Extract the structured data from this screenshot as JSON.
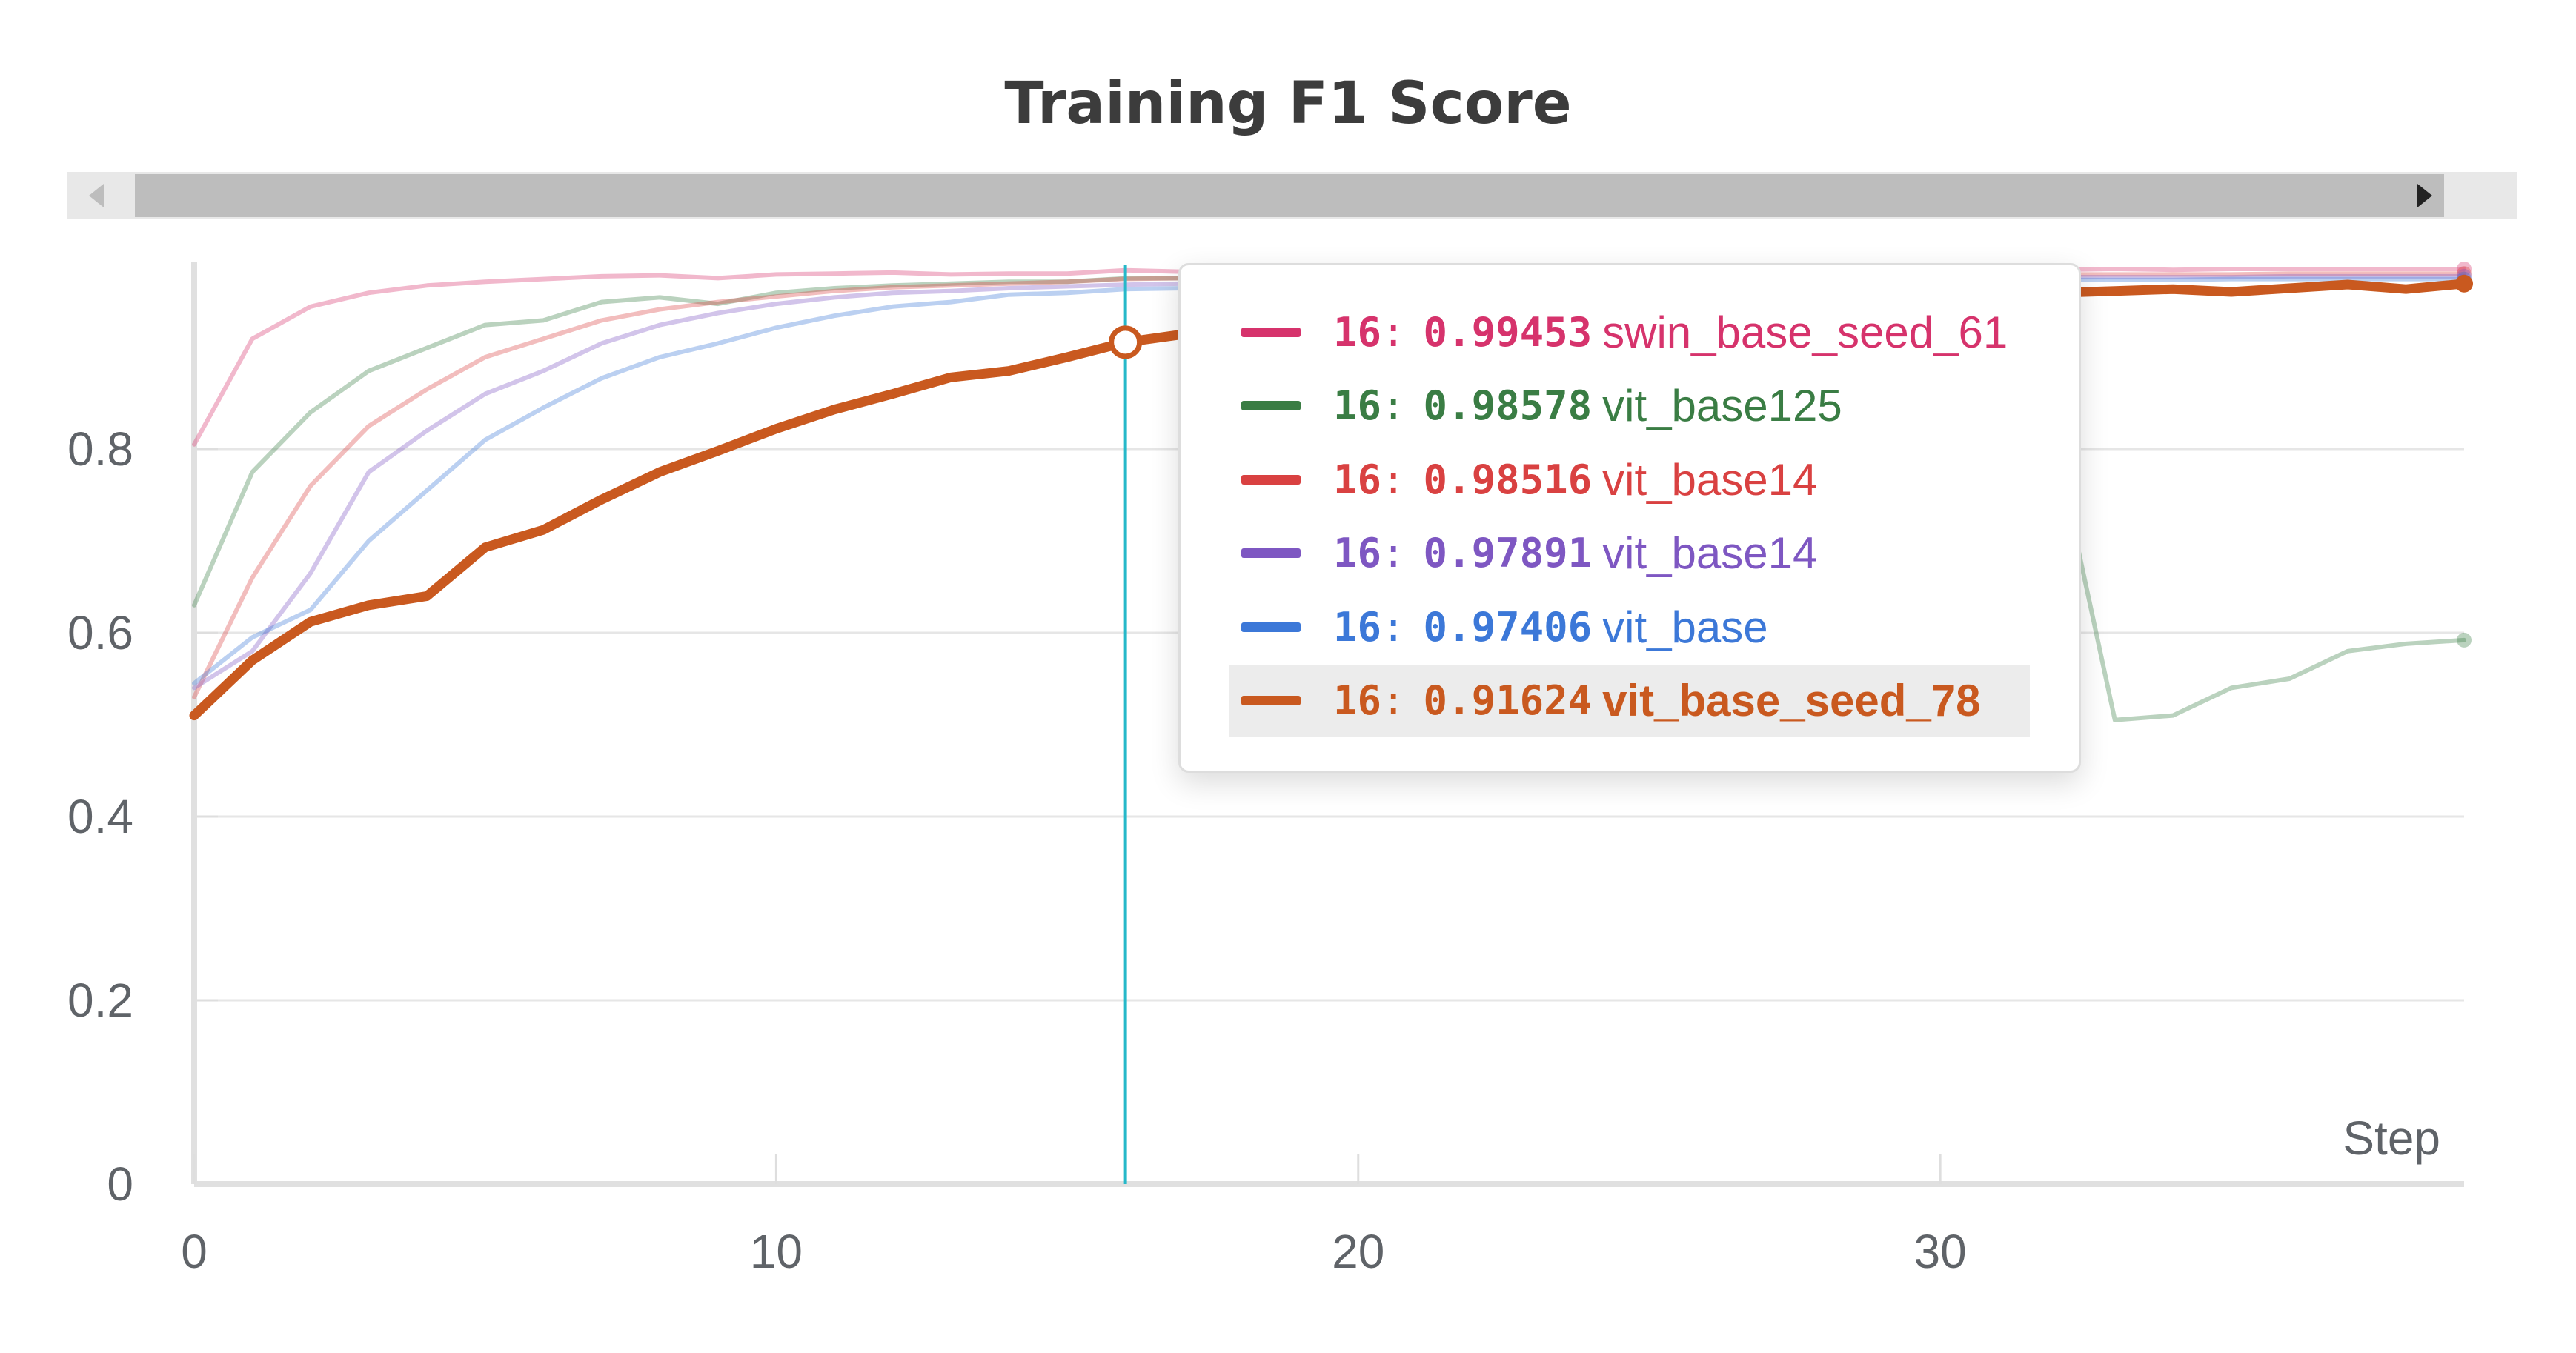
{
  "chart_data": {
    "type": "line",
    "title": "Training F1 Score",
    "xlabel": "Step",
    "ylabel": "",
    "xlim": [
      0,
      39
    ],
    "ylim": [
      0,
      1
    ],
    "x_ticks": [
      0,
      10,
      20,
      30
    ],
    "y_ticks": [
      0,
      0.2,
      0.4,
      0.6,
      0.8
    ],
    "y_tick_labels": [
      "0",
      "0.2",
      "0.4",
      "0.6",
      "0.8"
    ],
    "grid": true,
    "hover_step": 16,
    "series": [
      {
        "name": "swin_base_seed_61",
        "color": "#d6336c",
        "highlighted": false,
        "x": [
          0,
          1,
          2,
          3,
          4,
          5,
          6,
          7,
          8,
          9,
          10,
          11,
          12,
          13,
          14,
          15,
          16,
          17,
          18,
          19,
          20,
          21,
          22,
          23,
          24,
          25,
          26,
          27,
          28,
          29,
          30,
          31,
          32,
          33,
          34,
          35,
          36,
          37,
          38,
          39
        ],
        "y": [
          0.805,
          0.92,
          0.955,
          0.97,
          0.978,
          0.982,
          0.985,
          0.988,
          0.989,
          0.986,
          0.99,
          0.991,
          0.992,
          0.99,
          0.991,
          0.991,
          0.99453,
          0.993,
          0.992,
          0.993,
          0.993,
          0.994,
          0.993,
          0.994,
          0.994,
          0.994,
          0.995,
          0.994,
          0.995,
          0.995,
          0.995,
          0.995,
          0.995,
          0.996,
          0.995,
          0.996,
          0.996,
          0.996,
          0.996,
          0.996
        ]
      },
      {
        "name": "vit_base125",
        "color": "#3a7d44",
        "highlighted": false,
        "x": [
          0,
          1,
          2,
          3,
          4,
          5,
          6,
          7,
          8,
          9,
          10,
          11,
          12,
          13,
          14,
          15,
          16,
          17,
          18,
          19,
          20,
          21,
          22,
          23,
          24,
          25,
          26,
          27,
          28,
          29,
          30,
          31,
          32,
          33,
          34,
          35,
          36,
          37,
          38,
          39
        ],
        "y": [
          0.63,
          0.775,
          0.84,
          0.885,
          0.91,
          0.935,
          0.94,
          0.96,
          0.965,
          0.958,
          0.97,
          0.975,
          0.978,
          0.98,
          0.982,
          0.982,
          0.98578,
          0.986,
          0.987,
          0.987,
          0.988,
          0.988,
          0.989,
          0.989,
          0.989,
          0.99,
          0.99,
          0.99,
          0.99,
          0.99,
          0.99,
          0.99,
          0.8,
          0.505,
          0.51,
          0.54,
          0.55,
          0.58,
          0.588,
          0.592
        ]
      },
      {
        "name": "vit_base14",
        "color": "#d94141",
        "highlighted": false,
        "x": [
          0,
          1,
          2,
          3,
          4,
          5,
          6,
          7,
          8,
          9,
          10,
          11,
          12,
          13,
          14,
          15,
          16,
          17,
          18,
          19,
          20,
          21,
          22,
          23,
          24,
          25,
          26,
          27,
          28,
          29,
          30,
          31,
          32,
          33,
          34,
          35,
          36,
          37,
          38,
          39
        ],
        "y": [
          0.53,
          0.66,
          0.76,
          0.825,
          0.865,
          0.9,
          0.92,
          0.94,
          0.952,
          0.96,
          0.966,
          0.972,
          0.976,
          0.978,
          0.98,
          0.982,
          0.98516,
          0.986,
          0.987,
          0.987,
          0.988,
          0.988,
          0.989,
          0.989,
          0.99,
          0.99,
          0.99,
          0.99,
          0.99,
          0.99,
          0.99,
          0.99,
          0.99,
          0.99,
          0.99,
          0.99,
          0.991,
          0.991,
          0.991,
          0.991
        ]
      },
      {
        "name": "vit_base14",
        "color": "#7e57c2",
        "highlighted": false,
        "x": [
          0,
          1,
          2,
          3,
          4,
          5,
          6,
          7,
          8,
          9,
          10,
          11,
          12,
          13,
          14,
          15,
          16,
          17,
          18,
          19,
          20,
          21,
          22,
          23,
          24,
          25,
          26,
          27,
          28,
          29,
          30,
          31,
          32,
          33,
          34,
          35,
          36,
          37,
          38,
          39
        ],
        "y": [
          0.54,
          0.58,
          0.665,
          0.775,
          0.82,
          0.86,
          0.885,
          0.915,
          0.935,
          0.948,
          0.958,
          0.965,
          0.97,
          0.972,
          0.975,
          0.977,
          0.97891,
          0.98,
          0.981,
          0.982,
          0.983,
          0.983,
          0.984,
          0.984,
          0.985,
          0.985,
          0.985,
          0.986,
          0.986,
          0.986,
          0.986,
          0.987,
          0.987,
          0.987,
          0.987,
          0.987,
          0.988,
          0.988,
          0.988,
          0.988
        ]
      },
      {
        "name": "vit_base",
        "color": "#3c78d8",
        "highlighted": false,
        "x": [
          0,
          1,
          2,
          3,
          4,
          5,
          6,
          7,
          8,
          9,
          10,
          11,
          12,
          13,
          14,
          15,
          16,
          17,
          18,
          19,
          20,
          21,
          22,
          23,
          24,
          25,
          26,
          27,
          28,
          29,
          30,
          31,
          32,
          33,
          34,
          35,
          36,
          37,
          38,
          39
        ],
        "y": [
          0.545,
          0.595,
          0.625,
          0.7,
          0.755,
          0.81,
          0.845,
          0.877,
          0.9,
          0.915,
          0.932,
          0.945,
          0.955,
          0.96,
          0.968,
          0.97,
          0.97406,
          0.975,
          0.976,
          0.977,
          0.978,
          0.979,
          0.98,
          0.98,
          0.981,
          0.981,
          0.982,
          0.982,
          0.982,
          0.983,
          0.983,
          0.983,
          0.984,
          0.984,
          0.984,
          0.985,
          0.985,
          0.985,
          0.985,
          0.985
        ]
      },
      {
        "name": "vit_base_seed_78",
        "color": "#c9591f",
        "highlighted": true,
        "x": [
          0,
          1,
          2,
          3,
          4,
          5,
          6,
          7,
          8,
          9,
          10,
          11,
          12,
          13,
          14,
          15,
          16,
          17,
          18,
          19,
          20,
          21,
          22,
          23,
          24,
          25,
          26,
          27,
          28,
          29,
          30,
          31,
          32,
          33,
          34,
          35,
          36,
          37,
          38,
          39
        ],
        "y": [
          0.51,
          0.57,
          0.612,
          0.63,
          0.64,
          0.693,
          0.712,
          0.745,
          0.775,
          0.798,
          0.822,
          0.843,
          0.86,
          0.878,
          0.885,
          0.9,
          0.91624,
          0.925,
          0.93,
          0.935,
          0.94,
          0.945,
          0.948,
          0.952,
          0.955,
          0.958,
          0.96,
          0.962,
          0.963,
          0.965,
          0.967,
          0.968,
          0.97,
          0.972,
          0.974,
          0.971,
          0.975,
          0.979,
          0.974,
          0.98
        ]
      }
    ]
  },
  "tooltip": {
    "rows": [
      {
        "step": "16",
        "value": "0.99453",
        "name": "swin_base_seed_61",
        "color": "#d6336c"
      },
      {
        "step": "16",
        "value": "0.98578",
        "name": "vit_base125",
        "color": "#3a7d44"
      },
      {
        "step": "16",
        "value": "0.98516",
        "name": "vit_base14",
        "color": "#d94141"
      },
      {
        "step": "16",
        "value": "0.97891",
        "name": "vit_base14",
        "color": "#7e57c2"
      },
      {
        "step": "16",
        "value": "0.97406",
        "name": "vit_base",
        "color": "#3c78d8"
      },
      {
        "step": "16",
        "value": "0.91624",
        "name": "vit_base_seed_78",
        "color": "#c9591f"
      }
    ]
  }
}
